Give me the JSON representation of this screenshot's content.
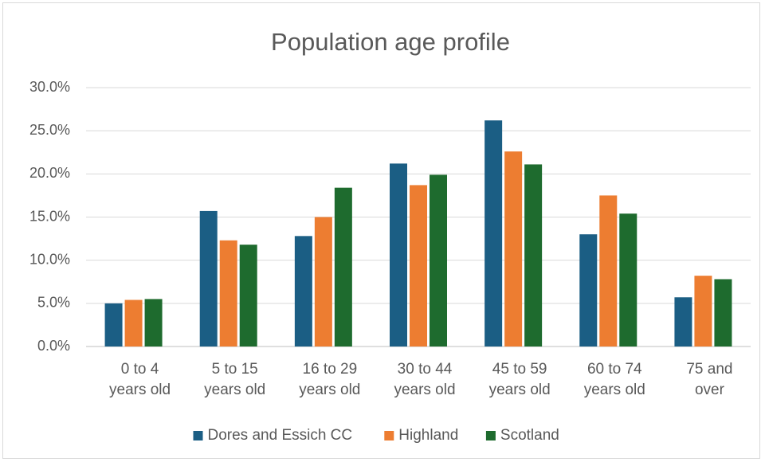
{
  "chart_data": {
    "type": "bar",
    "title": "Population age profile",
    "categories": [
      "0 to 4 years old",
      "5 to 15 years old",
      "16 to 29 years old",
      "30 to 44 years old",
      "45 to 59 years old",
      "60 to 74 years old",
      "75 and over"
    ],
    "series": [
      {
        "name": "Dores and Essich CC",
        "color": "#1b5e84",
        "values": [
          5.0,
          15.7,
          12.8,
          21.2,
          26.2,
          13.0,
          5.7
        ]
      },
      {
        "name": "Highland",
        "color": "#ed7d31",
        "values": [
          5.4,
          12.3,
          15.0,
          18.7,
          22.6,
          17.5,
          8.2
        ]
      },
      {
        "name": "Scotland",
        "color": "#1e6b2e",
        "values": [
          5.5,
          11.8,
          18.4,
          19.9,
          21.1,
          15.4,
          7.8
        ]
      }
    ],
    "ylim": [
      0,
      30
    ],
    "yticks": [
      {
        "value": 0,
        "label": "0.0%"
      },
      {
        "value": 5,
        "label": "5.0%"
      },
      {
        "value": 10,
        "label": "10.0%"
      },
      {
        "value": 15,
        "label": "15.0%"
      },
      {
        "value": 20,
        "label": "20.0%"
      },
      {
        "value": 25,
        "label": "25.0%"
      },
      {
        "value": 30,
        "label": "30.0%"
      }
    ],
    "grid": true,
    "legend": "bottom"
  }
}
